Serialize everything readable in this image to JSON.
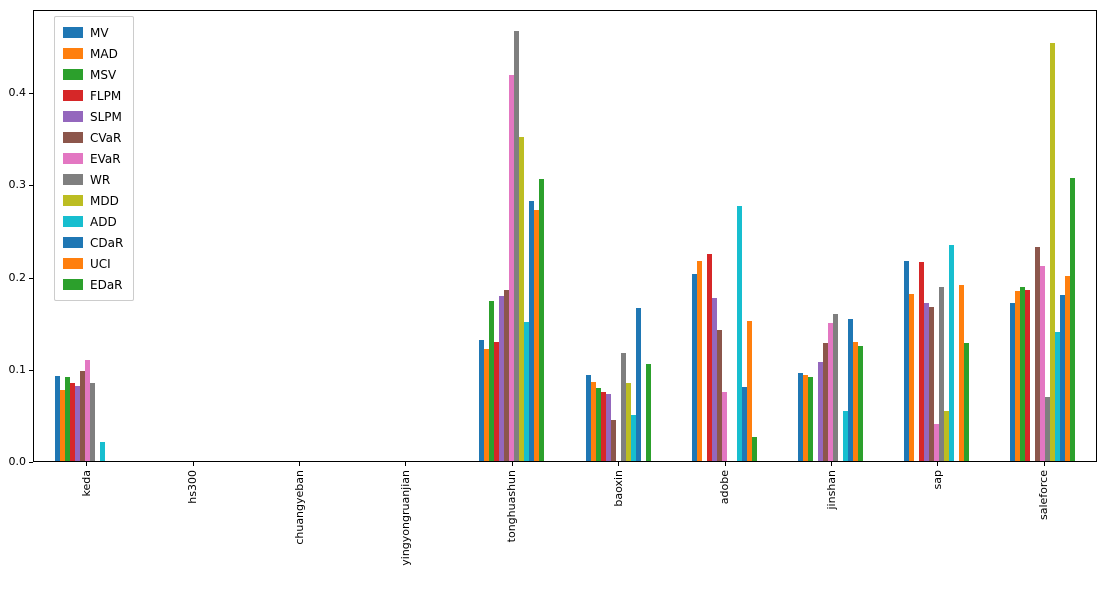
{
  "chart_data": {
    "type": "bar",
    "title": "",
    "xlabel": "",
    "ylabel": "",
    "ylim": [
      0,
      0.49
    ],
    "yticks": [
      0.0,
      0.1,
      0.2,
      0.3,
      0.4
    ],
    "grid": false,
    "legend_position": "upper left",
    "categories": [
      "keda",
      "hs300",
      "chuangyeban",
      "yingyongruanjian",
      "tonghuashun",
      "baoxin",
      "adobe",
      "jinshan",
      "sap",
      "saleforce"
    ],
    "series": [
      {
        "name": "MV",
        "color": "#1f77b4",
        "values": [
          0.093,
          0,
          0,
          0,
          0.132,
          0.094,
          0.204,
          0.096,
          0.218,
          0.172
        ]
      },
      {
        "name": "MAD",
        "color": "#ff7f0e",
        "values": [
          0.077,
          0,
          0,
          0,
          0.122,
          0.086,
          0.218,
          0.094,
          0.182,
          0.185
        ]
      },
      {
        "name": "MSV",
        "color": "#2ca02c",
        "values": [
          0.092,
          0,
          0,
          0,
          0.174,
          0.079,
          0,
          0.092,
          0,
          0.19
        ]
      },
      {
        "name": "FLPM",
        "color": "#d62728",
        "values": [
          0.085,
          0,
          0,
          0,
          0.13,
          0.075,
          0.225,
          0,
          0.217,
          0.186
        ]
      },
      {
        "name": "SLPM",
        "color": "#9467bd",
        "values": [
          0.082,
          0,
          0,
          0,
          0.18,
          0.073,
          0.178,
          0.108,
          0.172,
          0
        ]
      },
      {
        "name": "CVaR",
        "color": "#8c564b",
        "values": [
          0.098,
          0,
          0,
          0,
          0.186,
          0.045,
          0.143,
          0.128,
          0.168,
          0.233
        ]
      },
      {
        "name": "EVaR",
        "color": "#e377c2",
        "values": [
          0.11,
          0,
          0,
          0,
          0.42,
          0,
          0.075,
          0.15,
          0.04,
          0.212
        ]
      },
      {
        "name": "WR",
        "color": "#7f7f7f",
        "values": [
          0.085,
          0,
          0,
          0,
          0.468,
          0.118,
          0,
          0.16,
          0.19,
          0.07
        ]
      },
      {
        "name": "MDD",
        "color": "#bcbd22",
        "values": [
          0,
          0,
          0,
          0,
          0.353,
          0.085,
          0,
          0,
          0.054,
          0.455
        ]
      },
      {
        "name": "ADD",
        "color": "#17becf",
        "values": [
          0.021,
          0,
          0,
          0,
          0.151,
          0.05,
          0.278,
          0.055,
          0.235,
          0.14
        ]
      },
      {
        "name": "CDaR",
        "color": "#1f77b4",
        "values": [
          0,
          0,
          0,
          0,
          0.283,
          0.167,
          0.081,
          0.155,
          0,
          0.181
        ]
      },
      {
        "name": "UCI",
        "color": "#ff7f0e",
        "values": [
          0,
          0,
          0,
          0,
          0.273,
          0,
          0.153,
          0.13,
          0.192,
          0.201
        ]
      },
      {
        "name": "EDaR",
        "color": "#2ca02c",
        "values": [
          0,
          0,
          0,
          0,
          0.307,
          0.106,
          0.026,
          0.125,
          0.128,
          0.308
        ]
      }
    ]
  }
}
